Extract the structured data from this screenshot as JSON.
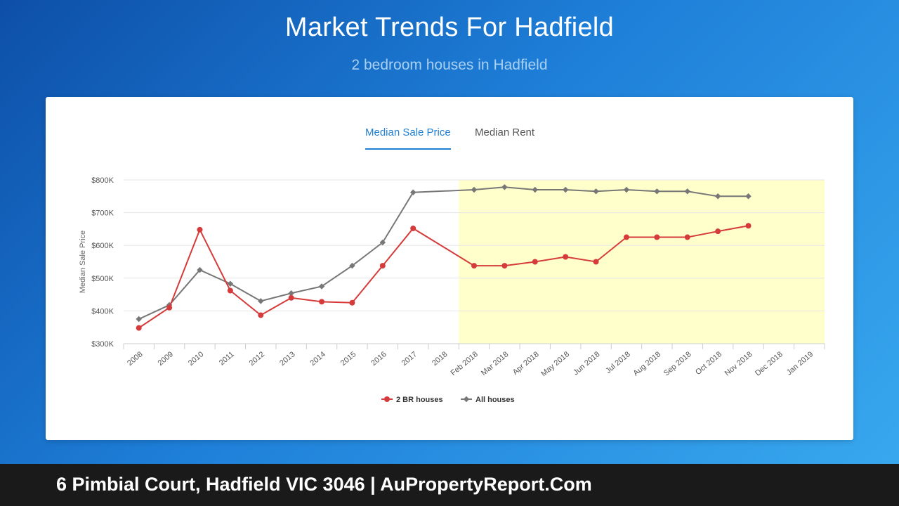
{
  "header": {
    "title": "Market Trends For Hadfield",
    "subtitle": "2 bedroom houses in Hadfield"
  },
  "tabs": [
    {
      "label": "Median Sale Price",
      "active": true
    },
    {
      "label": "Median Rent",
      "active": false
    }
  ],
  "footer": {
    "text": "6 Pimbial Court, Hadfield VIC 3046 | AuPropertyReport.Com"
  },
  "colors": {
    "br2": "#d63b3b",
    "all": "#777777",
    "highlight": "#ffffcc",
    "accent": "#1f7fd0"
  },
  "chart_data": {
    "type": "line",
    "ylabel": "Median Sale Price",
    "xlabel": "",
    "ylim": [
      300000,
      800000
    ],
    "yticks": [
      300000,
      400000,
      500000,
      600000,
      700000,
      800000
    ],
    "ytick_labels": [
      "$300K",
      "$400K",
      "$500K",
      "$600K",
      "$700K",
      "$800K"
    ],
    "categories": [
      "2008",
      "2009",
      "2010",
      "2011",
      "2012",
      "2013",
      "2014",
      "2015",
      "2016",
      "2017",
      "2018",
      "Feb 2018",
      "Mar 2018",
      "Apr 2018",
      "May 2018",
      "Jun 2018",
      "Jul 2018",
      "Aug 2018",
      "Sep 2018",
      "Oct 2018",
      "Nov 2018",
      "Dec 2018",
      "Jan 2019"
    ],
    "highlight_range": [
      "Feb 2018",
      "Jan 2019"
    ],
    "grid": true,
    "legend_position": "bottom-center",
    "series": [
      {
        "name": "2 BR houses",
        "color": "#d63b3b",
        "marker": "circle",
        "values": [
          348000,
          410000,
          648000,
          462000,
          387000,
          440000,
          428000,
          425000,
          538000,
          652000,
          null,
          538000,
          538000,
          550000,
          565000,
          550000,
          625000,
          625000,
          625000,
          643000,
          660000,
          null,
          null
        ]
      },
      {
        "name": "All houses",
        "color": "#777777",
        "marker": "diamond",
        "values": [
          375000,
          418000,
          525000,
          483000,
          430000,
          454000,
          475000,
          538000,
          609000,
          762000,
          null,
          770000,
          778000,
          770000,
          770000,
          765000,
          770000,
          765000,
          765000,
          750000,
          750000,
          null,
          null
        ]
      }
    ]
  }
}
